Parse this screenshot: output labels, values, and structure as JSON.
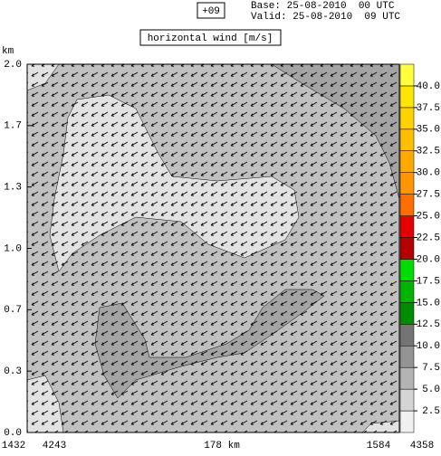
{
  "chart_data": {
    "type": "contour",
    "forecast_step": "+09",
    "base_time": "Base: 25-08-2010  00 UTC",
    "valid_time": "Valid: 25-08-2010  09 UTC",
    "title": "horizontal wind [m/s]",
    "y_label": "km",
    "ylim": [
      0,
      2
    ],
    "yticks": [
      {
        "value": 0,
        "label": "0.0"
      },
      {
        "value": 0.3333,
        "label": "0.3"
      },
      {
        "value": 0.6667,
        "label": "0.7"
      },
      {
        "value": 1,
        "label": "1.0"
      },
      {
        "value": 1.3333,
        "label": "1.3"
      },
      {
        "value": 1.6667,
        "label": "1.7"
      },
      {
        "value": 2,
        "label": "2.0"
      }
    ],
    "x_start_labels": [
      "1432",
      "4243"
    ],
    "x_center_label": "178 km",
    "x_end_labels": [
      "1584",
      "4358"
    ],
    "colorbar_levels": [
      0,
      2.5,
      5,
      7.5,
      10,
      12.5,
      15,
      17.5,
      20,
      22.5,
      25,
      27.5,
      30,
      32.5,
      35,
      37.5,
      40,
      42.5
    ],
    "colorbar_colors": [
      "#f0f0f0",
      "#d4d4d4",
      "#b4b4b4",
      "#949494",
      "#747474",
      "#008c00",
      "#00b400",
      "#00dc00",
      "#b40000",
      "#e60000",
      "#ff6e00",
      "#ff9600",
      "#ffaa00",
      "#ffbe00",
      "#ffd200",
      "#ffe600",
      "#ffff3c"
    ],
    "colorbar_ticks": [
      2.5,
      {
        "value": 5,
        "label": "5.0"
      },
      7.5,
      {
        "value": 10,
        "label": "10.0"
      },
      12.5,
      {
        "value": 15,
        "label": "15.0"
      },
      17.5,
      {
        "value": 20,
        "label": "20.0"
      },
      22.5,
      {
        "value": 25,
        "label": "25.0"
      },
      27.5,
      {
        "value": 30,
        "label": "30.0"
      },
      32.5,
      {
        "value": 35,
        "label": "35.0"
      },
      37.5,
      {
        "value": 40,
        "label": "40.0"
      }
    ]
  }
}
